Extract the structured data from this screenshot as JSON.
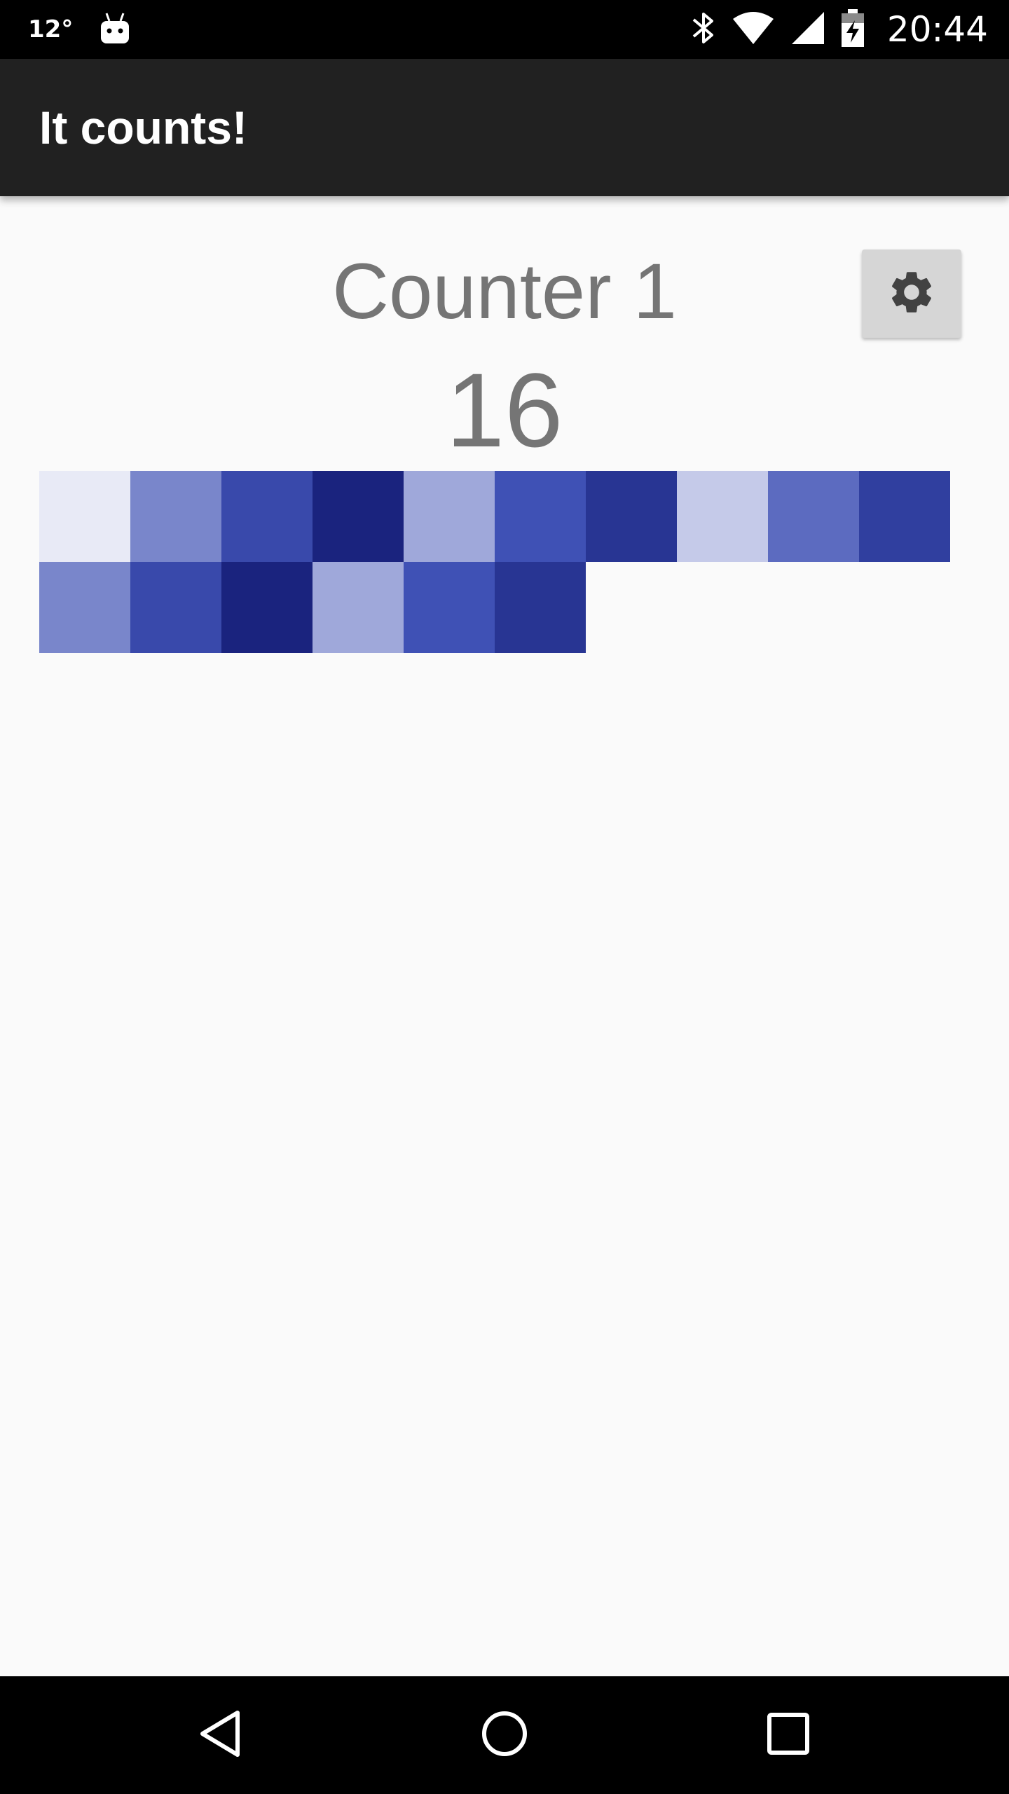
{
  "status_bar": {
    "temperature": "12°",
    "time": "20:44",
    "icons": [
      "android-debug-icon",
      "bluetooth-icon",
      "wifi-icon",
      "signal-icon",
      "battery-charging-icon"
    ]
  },
  "app_bar": {
    "title": "It counts!"
  },
  "counter": {
    "name": "Counter 1",
    "value": "16",
    "settings_icon": "gear-icon"
  },
  "grid": {
    "columns": 10,
    "cells": [
      {
        "color": "#e8eaf6"
      },
      {
        "color": "#7986cb"
      },
      {
        "color": "#3949ab"
      },
      {
        "color": "#1a237e"
      },
      {
        "color": "#9fa8da"
      },
      {
        "color": "#3f51b5"
      },
      {
        "color": "#283593"
      },
      {
        "color": "#c5cae9"
      },
      {
        "color": "#5c6bc0"
      },
      {
        "color": "#303f9f"
      },
      {
        "color": "#7986cb"
      },
      {
        "color": "#3949ab"
      },
      {
        "color": "#1a237e"
      },
      {
        "color": "#9fa8da"
      },
      {
        "color": "#3f51b5"
      },
      {
        "color": "#283593"
      }
    ]
  },
  "nav_bar": {
    "icons": [
      "back-icon",
      "home-icon",
      "recents-icon"
    ]
  }
}
